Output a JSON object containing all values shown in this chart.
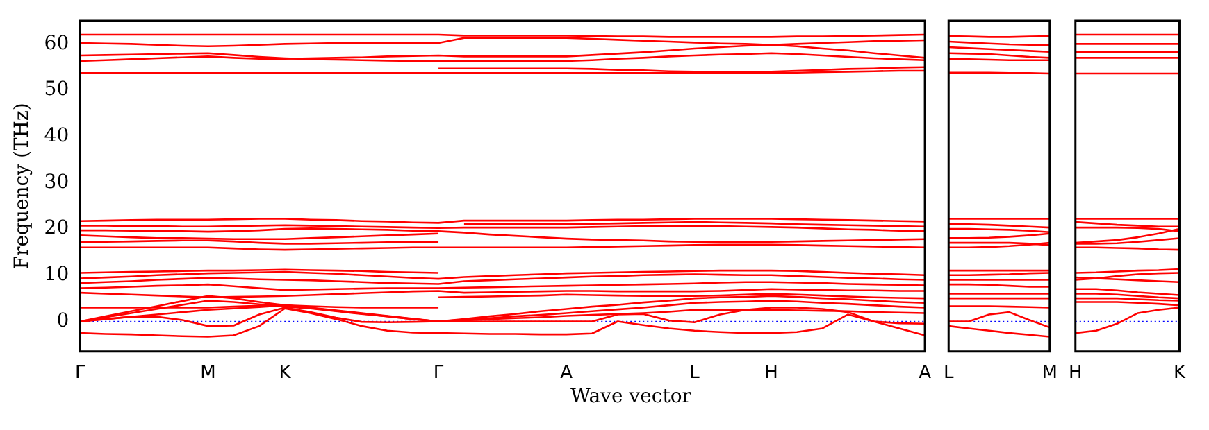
{
  "chart_data": [
    {
      "type": "line",
      "ylabel": "Frequency (THz)",
      "xlabel": "Wave vector",
      "ylim": [
        -6.5,
        65
      ],
      "categories": [
        "Γ",
        null,
        null,
        null,
        null,
        "M",
        null,
        null,
        "K",
        null,
        null,
        null,
        null,
        null,
        "Γ",
        null,
        null,
        null,
        null,
        "A",
        null,
        null,
        null,
        null,
        "L",
        null,
        null,
        "H",
        null,
        null,
        null,
        null,
        null,
        "A"
      ],
      "yticks": [
        0,
        10,
        20,
        30,
        40,
        50,
        60
      ],
      "ref_lines": [
        {
          "axis": "y",
          "value": 0,
          "color": "#0000ff",
          "line_style": "dotted"
        }
      ],
      "series": [
        {
          "color": "#ff0000",
          "values": [
            62,
            62,
            62,
            62,
            62,
            62,
            62,
            62,
            62,
            62,
            62,
            62,
            62,
            62,
            62,
            61.8,
            61.8,
            61.8,
            61.8,
            61.8,
            61.7,
            61.6,
            61.6,
            61.5,
            61.5,
            61.5,
            61.5,
            61.5,
            61.6,
            61.6,
            61.7,
            61.8,
            61.9,
            62
          ]
        },
        {
          "color": "#ff0000",
          "values": [
            60.2,
            60.1,
            60,
            59.8,
            59.6,
            59.5,
            59.6,
            59.8,
            60,
            60.1,
            60.2,
            60.2,
            60.2,
            60.2,
            60.2,
            61.3,
            61.3,
            61.3,
            61.3,
            61.3,
            61.1,
            60.9,
            60.7,
            60.5,
            60.3,
            60.1,
            60,
            59.8,
            60,
            60.2,
            60.4,
            60.6,
            60.7,
            60.8
          ]
        },
        {
          "color": "#ff0000",
          "values": [
            57.5,
            57.6,
            57.7,
            57.8,
            57.9,
            58,
            57.6,
            57.2,
            56.9,
            56.7,
            56.6,
            56.5,
            56.4,
            56.3,
            56.3,
            56.3,
            56.3,
            56.3,
            56.3,
            56.3,
            56.5,
            56.8,
            57,
            57.3,
            57.5,
            57.7,
            57.8,
            58,
            57.8,
            57.5,
            57.2,
            56.9,
            56.7,
            56.5
          ]
        },
        {
          "color": "#ff0000",
          "values": [
            56.3,
            56.5,
            56.7,
            56.9,
            57.1,
            57.3,
            57,
            56.8,
            56.8,
            56.9,
            57,
            57.1,
            57.3,
            57.4,
            57.5,
            57.3,
            57.3,
            57.3,
            57.3,
            57.3,
            57.6,
            57.9,
            58.2,
            58.6,
            59,
            59.3,
            59.6,
            59.8,
            59.5,
            59,
            58.6,
            58,
            57.5,
            57
          ]
        },
        {
          "color": "#ff0000",
          "values": [
            53.7,
            53.7,
            53.7,
            53.7,
            53.7,
            53.7,
            53.7,
            53.7,
            53.7,
            53.7,
            53.7,
            53.7,
            53.7,
            53.7,
            53.7,
            53.7,
            53.7,
            53.7,
            53.7,
            53.7,
            53.7,
            53.7,
            53.7,
            53.7,
            53.7,
            53.7,
            53.7,
            53.7,
            53.8,
            53.9,
            54,
            54.1,
            54.2,
            54.2
          ]
        },
        {
          "color": "#ff0000",
          "values": [
            null,
            null,
            null,
            null,
            null,
            null,
            null,
            null,
            null,
            null,
            null,
            null,
            null,
            null,
            54.7,
            54.7,
            54.7,
            54.7,
            54.7,
            54.7,
            54.6,
            54.4,
            54.3,
            54.1,
            54,
            54,
            54,
            54,
            54.2,
            54.4,
            54.6,
            54.7,
            54.9,
            55
          ]
        },
        {
          "color": "#ff0000",
          "values": [
            21.7,
            21.8,
            21.9,
            22,
            22,
            22,
            22.1,
            22.2,
            22.2,
            22,
            21.9,
            21.7,
            21.6,
            21.4,
            21.3,
            21.8,
            21.8,
            21.8,
            21.8,
            21.8,
            21.9,
            22,
            22,
            22.1,
            22.2,
            22.2,
            22.2,
            22.2,
            22.1,
            22,
            21.9,
            21.8,
            21.7,
            21.6
          ]
        },
        {
          "color": "#ff0000",
          "values": [
            20.7,
            20.7,
            20.6,
            20.6,
            20.5,
            20.5,
            20.6,
            20.7,
            20.8,
            20.7,
            20.6,
            20.5,
            20.4,
            20.3,
            20.2,
            20.3,
            20.3,
            20.3,
            20.3,
            20.3,
            20.4,
            20.5,
            20.6,
            20.6,
            20.7,
            20.6,
            20.5,
            20.4,
            20.3,
            20.1,
            19.9,
            19.8,
            19.6,
            19.5
          ]
        },
        {
          "color": "#ff0000",
          "values": [
            19.7,
            19.7,
            19.6,
            19.5,
            19.5,
            19.4,
            19.5,
            19.7,
            20,
            20.1,
            20,
            19.9,
            19.8,
            19.6,
            19.5,
            19.2,
            18.8,
            18.5,
            18.2,
            17.9,
            17.7,
            17.6,
            17.5,
            17.3,
            17.2,
            17.2,
            17.2,
            17.2,
            17.3,
            17.4,
            17.5,
            17.6,
            17.7,
            17.8
          ]
        },
        {
          "color": "#ff0000",
          "values": [
            18.6,
            18.4,
            18.2,
            18,
            18,
            17.9,
            17.8,
            17.8,
            17.8,
            18,
            18.2,
            18.4,
            18.6,
            18.8,
            19,
            null,
            null,
            null,
            null,
            null,
            null,
            null,
            null,
            null,
            null,
            null,
            null,
            null,
            null,
            null,
            null,
            null,
            null,
            null
          ]
        },
        {
          "color": "#ff0000",
          "values": [
            17.2,
            17.2,
            17.3,
            17.4,
            17.5,
            17.5,
            17.3,
            17,
            16.8,
            16.8,
            16.9,
            17,
            17.1,
            17.2,
            17.2,
            null,
            null,
            null,
            null,
            null,
            null,
            null,
            null,
            null,
            null,
            null,
            null,
            null,
            null,
            null,
            null,
            null,
            null,
            null
          ]
        },
        {
          "color": "#ff0000",
          "values": [
            16,
            16,
            16,
            16,
            16,
            16,
            15.8,
            15.6,
            15.5,
            15.6,
            15.7,
            15.8,
            15.9,
            16,
            16,
            16,
            16,
            16,
            16,
            16,
            16.1,
            16.2,
            16.3,
            16.4,
            16.5,
            16.6,
            16.6,
            16.6,
            16.5,
            16.4,
            16.3,
            16.2,
            16.1,
            16
          ]
        },
        {
          "color": "#ff0000",
          "values": [
            null,
            null,
            null,
            null,
            null,
            null,
            null,
            null,
            null,
            null,
            null,
            null,
            null,
            null,
            null,
            21,
            21,
            21,
            21,
            21,
            21.1,
            21.2,
            21.3,
            21.4,
            21.5,
            21.4,
            21.3,
            21.2,
            21,
            20.9,
            20.8,
            20.7,
            20.6,
            20.5
          ]
        },
        {
          "color": "#ff0000",
          "values": [
            10.5,
            10.6,
            10.7,
            10.8,
            10.9,
            11,
            11,
            11.1,
            11.2,
            11.1,
            11,
            10.9,
            10.7,
            10.6,
            10.5,
            null,
            null,
            null,
            null,
            null,
            null,
            null,
            null,
            null,
            null,
            null,
            null,
            null,
            null,
            null,
            null,
            null,
            null,
            null
          ]
        },
        {
          "color": "#ff0000",
          "values": [
            9.3,
            9.5,
            9.7,
            10,
            10.2,
            10.4,
            10.5,
            10.6,
            10.7,
            10.5,
            10.3,
            10,
            9.7,
            9.4,
            9.2,
            9.6,
            9.8,
            10,
            10.2,
            10.4,
            10.5,
            10.6,
            10.7,
            10.8,
            10.9,
            11,
            11,
            11,
            10.9,
            10.7,
            10.5,
            10.3,
            10.2,
            10
          ]
        },
        {
          "color": "#ff0000",
          "values": [
            8.3,
            8.5,
            8.7,
            9,
            9.2,
            9.4,
            9.3,
            9.1,
            9,
            8.9,
            8.7,
            8.5,
            8.3,
            8.2,
            8.1,
            8.7,
            8.9,
            9.1,
            9.3,
            9.5,
            9.7,
            9.8,
            10,
            10.1,
            10.2,
            10.1,
            10,
            10,
            9.8,
            9.6,
            9.4,
            9.3,
            9.1,
            9
          ]
        },
        {
          "color": "#ff0000",
          "values": [
            7.2,
            7.3,
            7.5,
            7.7,
            7.8,
            8,
            7.6,
            7.2,
            6.8,
            6.9,
            7,
            7.1,
            7.2,
            7.2,
            7.2,
            7.3,
            7.4,
            7.5,
            7.6,
            7.7,
            7.8,
            7.9,
            8,
            8.1,
            8.2,
            8.4,
            8.5,
            8.5,
            8.4,
            8.3,
            8.1,
            8,
            7.9,
            7.8
          ]
        },
        {
          "color": "#ff0000",
          "values": [
            6.2,
            6,
            5.8,
            5.6,
            5.4,
            5.2,
            5.3,
            5.4,
            5.5,
            5.7,
            5.9,
            6.1,
            6.3,
            6.5,
            6.6,
            6.2,
            6.3,
            6.4,
            6.5,
            6.6,
            6.6,
            6.5,
            6.5,
            6.5,
            6.5,
            6.6,
            6.8,
            7,
            6.9,
            6.8,
            6.7,
            6.7,
            6.6,
            6.6
          ]
        },
        {
          "color": "#ff0000",
          "values": [
            null,
            null,
            null,
            null,
            null,
            null,
            null,
            null,
            null,
            null,
            null,
            null,
            null,
            null,
            5.2,
            5.3,
            5.4,
            5.5,
            5.6,
            5.8,
            5.7,
            5.6,
            5.5,
            5.5,
            5.5,
            5.6,
            5.8,
            6,
            5.8,
            5.6,
            5.4,
            5.2,
            5.1,
            5
          ]
        },
        {
          "color": "#ff0000",
          "values": [
            3,
            3,
            3,
            3,
            3,
            3,
            3.2,
            3.4,
            3.5,
            3.3,
            3.1,
            3,
            3,
            3,
            3,
            null,
            null,
            null,
            null,
            null,
            null,
            null,
            null,
            null,
            null,
            null,
            null,
            null,
            null,
            null,
            null,
            null,
            null,
            null
          ]
        },
        {
          "color": "#ff0000",
          "values": [
            0,
            1.1,
            2.2,
            3.3,
            4.4,
            5.5,
            5,
            4.2,
            3.5,
            3,
            2.4,
            1.8,
            1.2,
            0.6,
            0,
            0.5,
            1.1,
            1.6,
            2.2,
            2.7,
            3.2,
            3.6,
            4.1,
            4.5,
            5,
            5.2,
            5.3,
            5.5,
            5.3,
            5,
            4.8,
            4.5,
            4.2,
            4
          ]
        },
        {
          "color": "#ff0000",
          "values": [
            0,
            0.9,
            1.8,
            2.7,
            3.6,
            4.5,
            4.2,
            3.7,
            3.2,
            2.8,
            2.2,
            1.6,
            1.1,
            0.5,
            0,
            0.4,
            0.7,
            1.1,
            1.4,
            1.8,
            2.2,
            2.6,
            3,
            3.5,
            4,
            4.2,
            4.3,
            4.5,
            4.3,
            4,
            3.8,
            3.5,
            3.2,
            3
          ]
        },
        {
          "color": "#ff0000",
          "values": [
            0,
            0.5,
            1,
            1.5,
            2,
            2.5,
            2.8,
            3.1,
            3.5,
            2.9,
            2.3,
            1.7,
            1.1,
            0.5,
            0,
            0.2,
            0.5,
            0.7,
            0.9,
            1.2,
            1.4,
            1.6,
            1.8,
            2.1,
            2.5,
            2.5,
            2.5,
            2.5,
            2.4,
            2.3,
            2.2,
            2,
            1.9,
            1.8
          ]
        },
        {
          "color": "#ff0000",
          "values": [
            0,
            0.5,
            1,
            1,
            0.3,
            -1,
            -0.9,
            1.5,
            3,
            2,
            0.8,
            -0.1,
            -0.2,
            -0.1,
            0,
            0,
            0,
            0,
            0,
            0,
            0,
            1.5,
            1.6,
            0.2,
            -0.2,
            1.5,
            2.5,
            3,
            3,
            2.7,
            2,
            0,
            -0.4,
            -0.5
          ]
        },
        {
          "color": "#ff0000",
          "values": [
            -2.5,
            -2.7,
            -2.8,
            -3,
            -3.2,
            -3.3,
            -3,
            -1,
            2.8,
            1.8,
            0.5,
            -1,
            -2,
            -2.4,
            -2.5,
            -2.6,
            -2.7,
            -2.7,
            -2.8,
            -2.8,
            -2.6,
            0,
            -0.8,
            -1.5,
            -2,
            -2.3,
            -2.5,
            -2.5,
            -2.3,
            -1.5,
            1.5,
            0,
            -1.5,
            -3
          ]
        }
      ]
    },
    {
      "type": "line",
      "ylim": [
        -6.5,
        65
      ],
      "tick_labels": "x",
      "categories": [
        "L",
        null,
        null,
        null,
        null,
        "M"
      ],
      "yticks": [
        0,
        10,
        20,
        30,
        40,
        50,
        60
      ],
      "ref_lines": [
        {
          "axis": "y",
          "value": 0,
          "color": "#0000ff",
          "line_style": "dotted"
        }
      ],
      "series": [
        {
          "color": "#ff0000",
          "values": [
            61.7,
            61.6,
            61.5,
            61.5,
            61.6,
            61.7
          ]
        },
        {
          "color": "#ff0000",
          "values": [
            60.5,
            60.3,
            60.1,
            59.9,
            59.8,
            59.7
          ]
        },
        {
          "color": "#ff0000",
          "values": [
            59.3,
            59.1,
            58.9,
            58.7,
            58.5,
            58.3
          ]
        },
        {
          "color": "#ff0000",
          "values": [
            58,
            57.9,
            57.8,
            57.5,
            57.2,
            57
          ]
        },
        {
          "color": "#ff0000",
          "values": [
            56.8,
            56.7,
            56.6,
            56.5,
            56.5,
            56.5
          ]
        },
        {
          "color": "#ff0000",
          "values": [
            53.8,
            53.8,
            53.8,
            53.7,
            53.7,
            53.6
          ]
        },
        {
          "color": "#ff0000",
          "values": [
            22.2,
            22.2,
            22.2,
            22.2,
            22.2,
            22.2
          ]
        },
        {
          "color": "#ff0000",
          "values": [
            21,
            21,
            20.9,
            20.7,
            20.5,
            20.3
          ]
        },
        {
          "color": "#ff0000",
          "values": [
            20,
            20,
            19.9,
            19.8,
            19.6,
            19.3
          ]
        },
        {
          "color": "#ff0000",
          "values": [
            18,
            18,
            18.1,
            18.3,
            18.6,
            19
          ]
        },
        {
          "color": "#ff0000",
          "values": [
            17,
            17,
            17,
            17,
            16.8,
            16.5
          ]
        },
        {
          "color": "#ff0000",
          "values": [
            16,
            16,
            16.1,
            16.3,
            16.6,
            17
          ]
        },
        {
          "color": "#ff0000",
          "values": [
            11,
            11,
            11,
            11,
            11,
            11
          ]
        },
        {
          "color": "#ff0000",
          "values": [
            10,
            10,
            10.1,
            10.2,
            10.4,
            10.5
          ]
        },
        {
          "color": "#ff0000",
          "values": [
            9,
            9,
            9,
            9,
            9,
            9
          ]
        },
        {
          "color": "#ff0000",
          "values": [
            8,
            8,
            7.9,
            7.7,
            7.5,
            7.5
          ]
        },
        {
          "color": "#ff0000",
          "values": [
            6,
            6,
            6,
            6,
            6,
            6
          ]
        },
        {
          "color": "#ff0000",
          "values": [
            5,
            5,
            5,
            5,
            5,
            5
          ]
        },
        {
          "color": "#ff0000",
          "values": [
            3.3,
            3.3,
            3.3,
            3.2,
            3.1,
            3
          ]
        },
        {
          "color": "#ff0000",
          "values": [
            0,
            0,
            1.5,
            2,
            0.3,
            -1.3
          ]
        },
        {
          "color": "#ff0000",
          "values": [
            -1,
            -1.5,
            -2,
            -2.5,
            -2.9,
            -3.3
          ]
        }
      ]
    },
    {
      "type": "line",
      "ylim": [
        -6.5,
        65
      ],
      "tick_labels": "x",
      "categories": [
        "H",
        null,
        null,
        null,
        null,
        "K"
      ],
      "yticks": [
        0,
        10,
        20,
        30,
        40,
        50,
        60
      ],
      "ref_lines": [
        {
          "axis": "y",
          "value": 0,
          "color": "#0000ff",
          "line_style": "dotted"
        }
      ],
      "series": [
        {
          "color": "#ff0000",
          "values": [
            62,
            62,
            62,
            62,
            62,
            62
          ]
        },
        {
          "color": "#ff0000",
          "values": [
            60,
            60,
            60,
            60,
            60,
            60
          ]
        },
        {
          "color": "#ff0000",
          "values": [
            58.3,
            58.3,
            58.3,
            58.3,
            58.3,
            58.3
          ]
        },
        {
          "color": "#ff0000",
          "values": [
            57,
            57,
            57,
            57,
            57,
            57
          ]
        },
        {
          "color": "#ff0000",
          "values": [
            53.6,
            53.6,
            53.6,
            53.6,
            53.6,
            53.6
          ]
        },
        {
          "color": "#ff0000",
          "values": [
            22.2,
            22.2,
            22.2,
            22.2,
            22.2,
            22.2
          ]
        },
        {
          "color": "#ff0000",
          "values": [
            21.5,
            21.2,
            20.9,
            20.7,
            20.5,
            20.5
          ]
        },
        {
          "color": "#ff0000",
          "values": [
            20.3,
            20.3,
            20.3,
            20.2,
            20,
            19.5
          ]
        },
        {
          "color": "#ff0000",
          "values": [
            17,
            17.3,
            17.6,
            18.2,
            19,
            20
          ]
        },
        {
          "color": "#ff0000",
          "values": [
            16.8,
            16.8,
            16.9,
            17.2,
            17.6,
            18
          ]
        },
        {
          "color": "#ff0000",
          "values": [
            16,
            16,
            15.9,
            15.8,
            15.6,
            15.5
          ]
        },
        {
          "color": "#ff0000",
          "values": [
            10.5,
            10.6,
            10.8,
            11,
            11.1,
            11.3
          ]
        },
        {
          "color": "#ff0000",
          "values": [
            9,
            9.3,
            9.8,
            10.2,
            10.4,
            10.5
          ]
        },
        {
          "color": "#ff0000",
          "values": [
            9.5,
            9.3,
            9.1,
            8.9,
            8.7,
            8.5
          ]
        },
        {
          "color": "#ff0000",
          "values": [
            7,
            7,
            6.7,
            6.3,
            6,
            5.7
          ]
        },
        {
          "color": "#ff0000",
          "values": [
            6,
            6,
            5.8,
            5.5,
            5.2,
            5
          ]
        },
        {
          "color": "#ff0000",
          "values": [
            5,
            5,
            5,
            4.8,
            4.6,
            4.5
          ]
        },
        {
          "color": "#ff0000",
          "values": [
            4.2,
            4.2,
            4.2,
            4,
            3.8,
            3.5
          ]
        },
        {
          "color": "#ff0000",
          "values": [
            -2.5,
            -2,
            -0.5,
            1.8,
            2.5,
            3
          ]
        }
      ]
    }
  ]
}
